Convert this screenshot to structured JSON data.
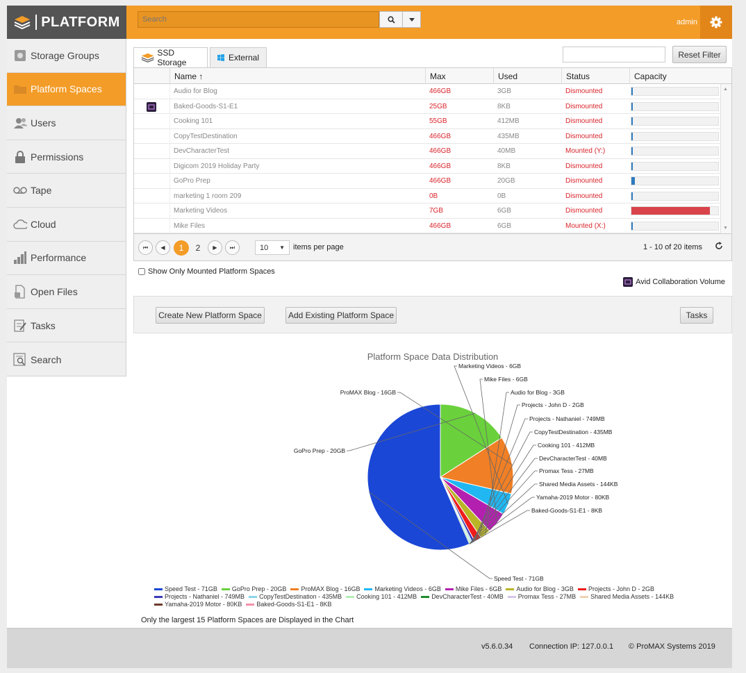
{
  "brand": {
    "name": "PLATFORM"
  },
  "header": {
    "search_placeholder": "Search",
    "user_label": "admin"
  },
  "sidebar": {
    "items": [
      {
        "label": "Storage Groups",
        "icon": "storage-groups-icon",
        "active": false
      },
      {
        "label": "Platform Spaces",
        "icon": "folder-icon",
        "active": true
      },
      {
        "label": "Users",
        "icon": "users-icon",
        "active": false
      },
      {
        "label": "Permissions",
        "icon": "lock-icon",
        "active": false
      },
      {
        "label": "Tape",
        "icon": "tape-icon",
        "active": false
      },
      {
        "label": "Cloud",
        "icon": "cloud-icon",
        "active": false
      },
      {
        "label": "Performance",
        "icon": "bar-chart-icon",
        "active": false
      },
      {
        "label": "Open Files",
        "icon": "open-file-icon",
        "active": false
      },
      {
        "label": "Tasks",
        "icon": "tasks-icon",
        "active": false
      },
      {
        "label": "Search",
        "icon": "search-doc-icon",
        "active": false
      }
    ]
  },
  "tabs": [
    {
      "label": "SSD Storage",
      "active": true
    },
    {
      "label": "External",
      "active": false
    }
  ],
  "filter": {
    "value": "",
    "reset_label": "Reset Filter"
  },
  "table": {
    "columns": [
      "Name ↑",
      "Max",
      "Used",
      "Status",
      "Capacity"
    ],
    "rows": [
      {
        "name": "Audio for Blog",
        "max": "466GB",
        "used": "3GB",
        "status": "Dismounted",
        "capacity": 0.01,
        "cap_color": "#2f7bbf",
        "avid": false
      },
      {
        "name": "Baked-Goods-S1-E1",
        "max": "25GB",
        "used": "8KB",
        "status": "Dismounted",
        "capacity": 0,
        "cap_color": "#2f7bbf",
        "avid": true
      },
      {
        "name": "Cooking 101",
        "max": "55GB",
        "used": "412MB",
        "status": "Dismounted",
        "capacity": 0.01,
        "cap_color": "#2f7bbf",
        "avid": false
      },
      {
        "name": "CopyTestDestination",
        "max": "466GB",
        "used": "435MB",
        "status": "Dismounted",
        "capacity": 0,
        "cap_color": "#2f7bbf",
        "avid": false
      },
      {
        "name": "DevCharacterTest",
        "max": "466GB",
        "used": "40MB",
        "status": "Mounted (Y:)",
        "capacity": 0,
        "cap_color": "#2f7bbf",
        "avid": false
      },
      {
        "name": "Digicom 2019 Holiday Party",
        "max": "466GB",
        "used": "8KB",
        "status": "Dismounted",
        "capacity": 0,
        "cap_color": "#2f7bbf",
        "avid": false
      },
      {
        "name": "GoPro Prep",
        "max": "466GB",
        "used": "20GB",
        "status": "Dismounted",
        "capacity": 0.04,
        "cap_color": "#2f7bbf",
        "avid": false
      },
      {
        "name": "marketing 1 room 209",
        "max": "0B",
        "used": "0B",
        "status": "Dismounted",
        "capacity": 0,
        "cap_color": "#2f7bbf",
        "avid": false
      },
      {
        "name": "Marketing Videos",
        "max": "7GB",
        "used": "6GB",
        "status": "Dismounted",
        "capacity": 0.9,
        "cap_color": "#d9434a",
        "avid": false
      },
      {
        "name": "Mike Files",
        "max": "466GB",
        "used": "6GB",
        "status": "Mounted (X:)",
        "capacity": 0.01,
        "cap_color": "#2f7bbf",
        "avid": false
      }
    ]
  },
  "pager": {
    "pages": [
      "1",
      "2"
    ],
    "current": "1",
    "page_size": "10",
    "items_per_page_label": "items per page",
    "summary": "1 - 10 of 20 items"
  },
  "options": {
    "show_mounted_label": "Show Only Mounted Platform Spaces",
    "avid_legend": "Avid Collaboration Volume"
  },
  "actions": {
    "create": "Create New Platform Space",
    "add_existing": "Add Existing Platform Space",
    "tasks": "Tasks"
  },
  "chart_data": {
    "type": "pie",
    "title": "Platform Space Data Distribution",
    "slices": [
      {
        "name": "Speed Test - 71GB",
        "value": 71,
        "color": "#1b47d6"
      },
      {
        "name": "GoPro Prep - 20GB",
        "value": 20,
        "color": "#6ad13c"
      },
      {
        "name": "ProMAX Blog - 16GB",
        "value": 16,
        "color": "#f07f25"
      },
      {
        "name": "Marketing Videos - 6GB",
        "value": 6,
        "color": "#20b7f2"
      },
      {
        "name": "Mike Files - 6GB",
        "value": 6,
        "color": "#b320b0"
      },
      {
        "name": "Audio for Blog - 3GB",
        "value": 3,
        "color": "#b9b526"
      },
      {
        "name": "Projects - John D - 2GB",
        "value": 2,
        "color": "#ee1c1c"
      },
      {
        "name": "Projects - Nathaniel - 749MB",
        "value": 0.749,
        "color": "#3a3ab8"
      },
      {
        "name": "CopyTestDestination - 435MB",
        "value": 0.435,
        "color": "#8ad6ea"
      },
      {
        "name": "Cooking 101 - 412MB",
        "value": 0.412,
        "color": "#b4ecb4"
      },
      {
        "name": "DevCharacterTest - 40MB",
        "value": 0.04,
        "color": "#1f8a2e"
      },
      {
        "name": "Promax Tess - 27MB",
        "value": 0.027,
        "color": "#d6c6ea"
      },
      {
        "name": "Shared Media Assets - 144KB",
        "value": 0.000144,
        "color": "#f1d2b2"
      },
      {
        "name": "Yamaha-2019 Motor - 80KB",
        "value": 8e-05,
        "color": "#6a3a2a"
      },
      {
        "name": "Baked-Goods-S1-E1 - 8KB",
        "value": 8e-06,
        "color": "#f58fa8"
      }
    ],
    "legend_placement": "bottom"
  },
  "chart_note": "Only the largest 15 Platform Spaces are Displayed in the Chart",
  "footer": {
    "version": "v5.6.0.34",
    "connection": "Connection IP: 127.0.0.1",
    "copyright": "© ProMAX Systems 2019"
  }
}
